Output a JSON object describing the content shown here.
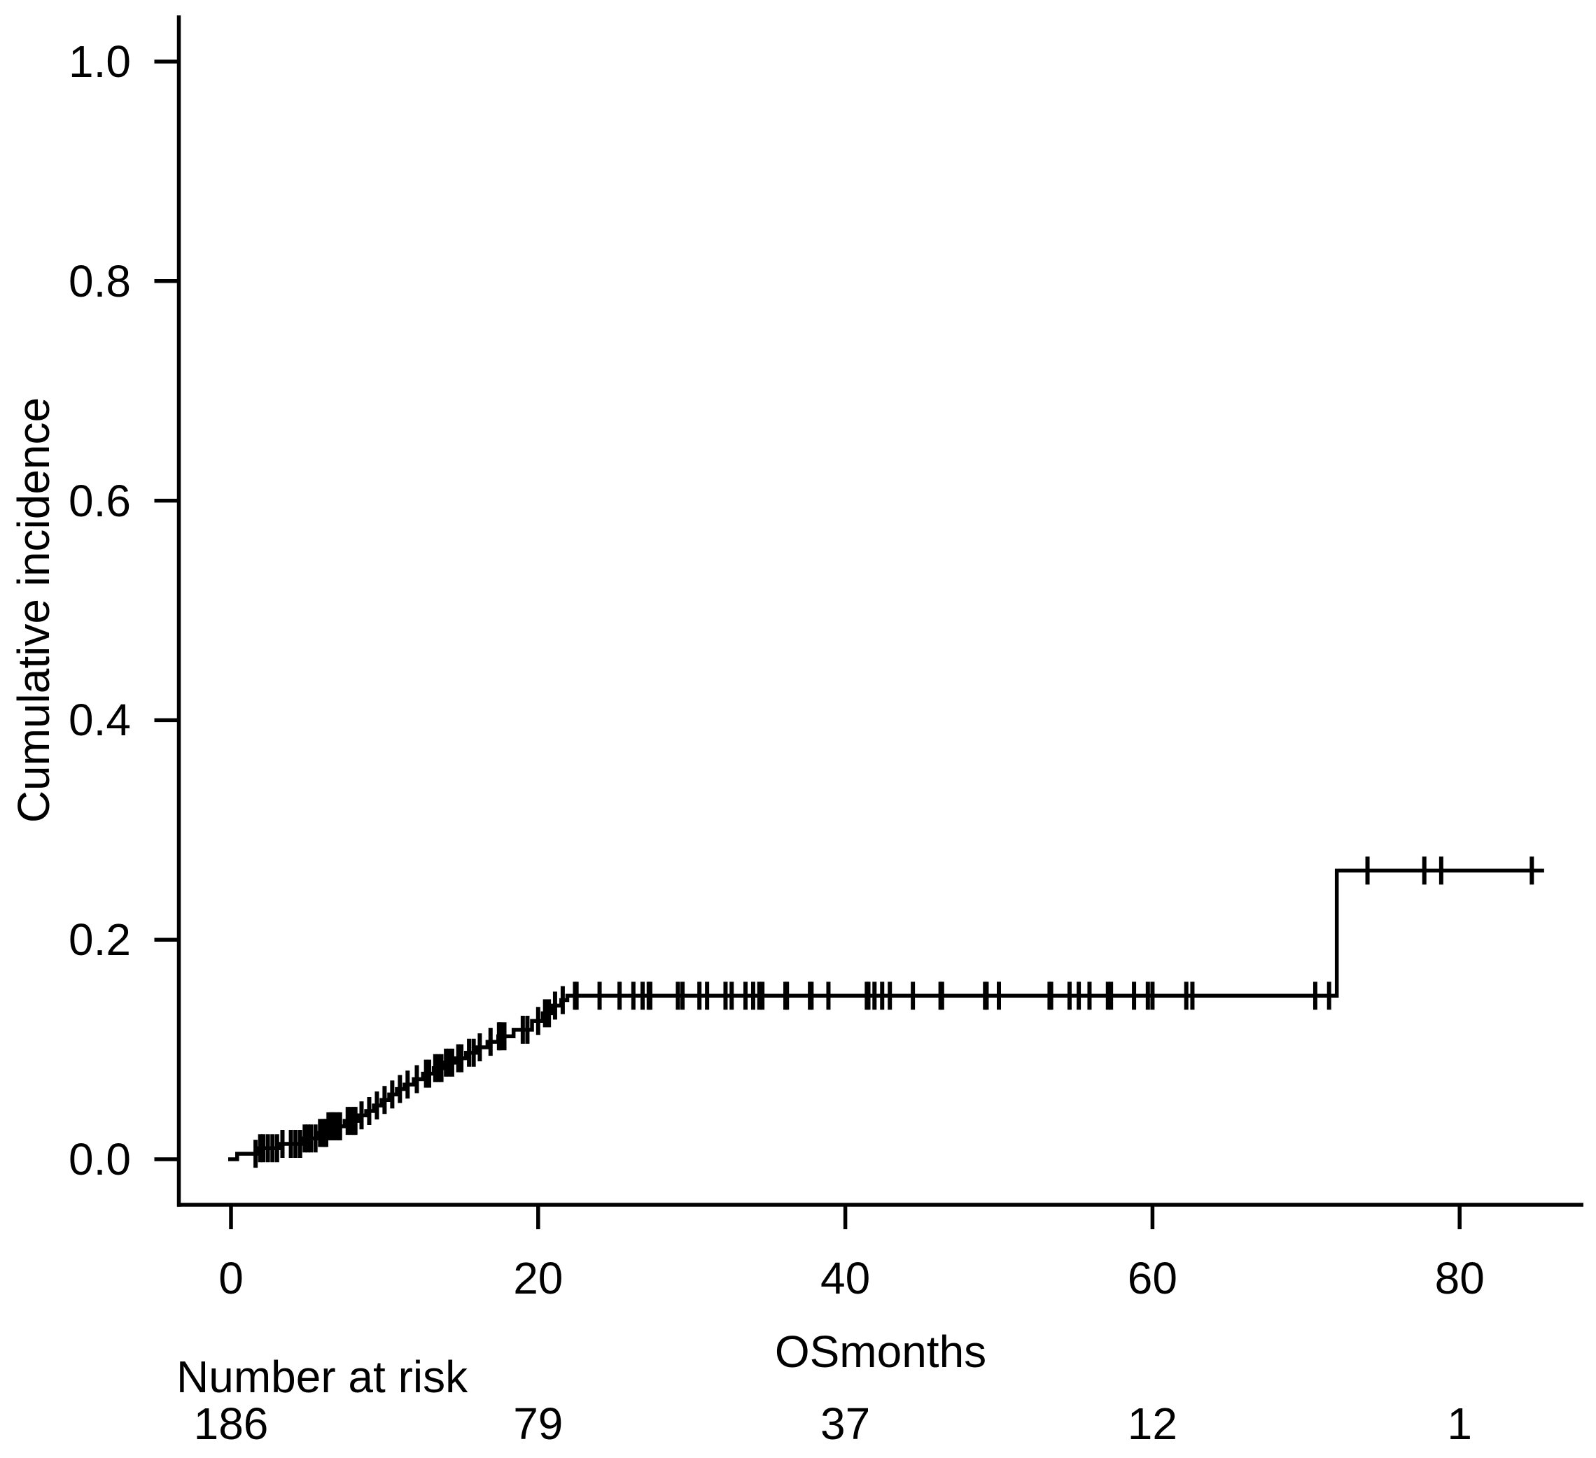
{
  "chart_data": {
    "type": "line",
    "subtype": "step-function-cumulative-incidence",
    "title": "",
    "xlabel": "OSmonths",
    "ylabel": "Cumulative incidence",
    "xlim": [
      0,
      88
    ],
    "ylim": [
      0,
      1.04
    ],
    "grid": false,
    "legend_position": "none",
    "xticks": {
      "values": [
        0,
        20,
        40,
        60,
        80
      ],
      "labels": [
        "0",
        "20",
        "40",
        "60",
        "80"
      ]
    },
    "yticks": {
      "values": [
        0.0,
        0.2,
        0.4,
        0.6,
        0.8,
        1.0
      ],
      "labels": [
        "0.0",
        "0.2",
        "0.4",
        "0.6",
        "0.8",
        "1.0"
      ]
    },
    "series": [
      {
        "name": "Cumulative incidence",
        "color": "#000000",
        "steps": [
          [
            0.0,
            0.0
          ],
          [
            0.4,
            0.005
          ],
          [
            1.8,
            0.01
          ],
          [
            3.2,
            0.014
          ],
          [
            4.6,
            0.019
          ],
          [
            5.6,
            0.024
          ],
          [
            6.3,
            0.03
          ],
          [
            7.4,
            0.035
          ],
          [
            8.3,
            0.04
          ],
          [
            8.8,
            0.044
          ],
          [
            9.3,
            0.049
          ],
          [
            9.8,
            0.054
          ],
          [
            10.3,
            0.059
          ],
          [
            10.8,
            0.064
          ],
          [
            11.3,
            0.068
          ],
          [
            11.9,
            0.073
          ],
          [
            12.5,
            0.078
          ],
          [
            13.2,
            0.083
          ],
          [
            13.9,
            0.088
          ],
          [
            14.6,
            0.092
          ],
          [
            15.3,
            0.097
          ],
          [
            16.0,
            0.102
          ],
          [
            16.7,
            0.107
          ],
          [
            17.4,
            0.112
          ],
          [
            18.4,
            0.118
          ],
          [
            19.6,
            0.126
          ],
          [
            20.3,
            0.133
          ],
          [
            20.9,
            0.14
          ],
          [
            21.5,
            0.145
          ],
          [
            21.9,
            0.149
          ],
          [
            72.0,
            0.263
          ]
        ],
        "end_time": 85.5,
        "censor_times": [
          1.6,
          1.9,
          2.1,
          2.4,
          2.7,
          3.0,
          3.35,
          3.9,
          4.2,
          4.5,
          4.8,
          5.0,
          5.2,
          5.5,
          5.8,
          6.0,
          6.1,
          6.2,
          6.35,
          6.5,
          6.6,
          6.7,
          6.85,
          7.0,
          7.1,
          7.6,
          7.8,
          8.0,
          8.1,
          8.5,
          9.0,
          9.5,
          10.0,
          10.5,
          11.0,
          11.5,
          12.1,
          12.7,
          12.9,
          13.3,
          13.5,
          13.7,
          14.0,
          14.2,
          14.4,
          14.8,
          15.0,
          15.5,
          15.8,
          16.2,
          16.9,
          17.45,
          17.55,
          17.8,
          19.0,
          19.3,
          20.0,
          20.45,
          20.7,
          21.1,
          21.6,
          22.4,
          22.5,
          24.0,
          25.3,
          26.2,
          26.8,
          27.2,
          27.3,
          29.1,
          29.4,
          30.5,
          31.0,
          32.2,
          32.6,
          33.5,
          34.0,
          34.4,
          34.6,
          36.1,
          36.2,
          37.7,
          37.8,
          38.9,
          41.4,
          41.5,
          41.9,
          42.4,
          42.9,
          44.4,
          46.2,
          46.3,
          49.1,
          49.2,
          50.0,
          53.3,
          53.4,
          54.6,
          55.2,
          55.9,
          57.1,
          57.3,
          58.8,
          59.7,
          60.0,
          62.2,
          62.6,
          70.6,
          71.5,
          74.0,
          77.7,
          78.8,
          84.7
        ]
      }
    ],
    "number_at_risk": {
      "label": "Number at risk",
      "times": [
        0,
        20,
        40,
        60,
        80
      ],
      "counts": [
        "186",
        "79",
        "37",
        "12",
        "1"
      ]
    },
    "colors": {
      "line": "#000000",
      "text": "#000000",
      "background": "#ffffff"
    }
  }
}
